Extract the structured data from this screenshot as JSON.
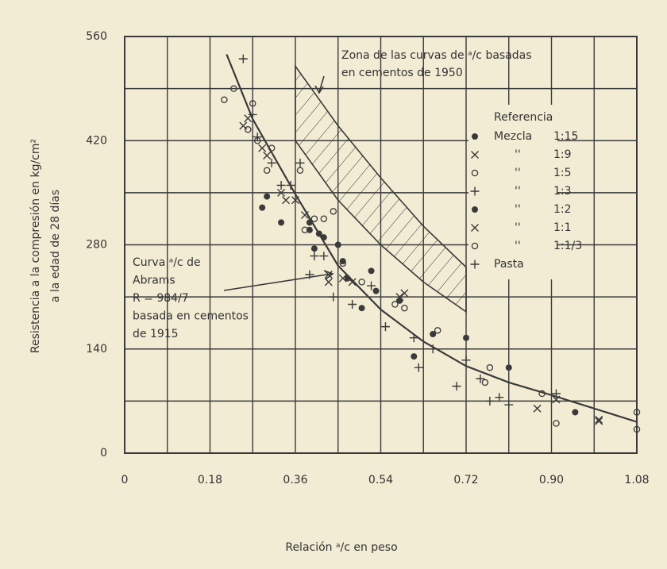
{
  "chart_data": {
    "type": "scatter",
    "xlabel": "Relación ᵃ/c en peso",
    "ylabel": [
      "Resistencia a la compresión en kg/cm²",
      "a la edad de 28 días"
    ],
    "xlim": [
      0,
      1.08
    ],
    "ylim": [
      0,
      560
    ],
    "xticks": [
      0,
      0.18,
      0.36,
      0.54,
      0.72,
      {
        "value": 0.9,
        "label": "0.90"
      },
      1.08
    ],
    "yticks": [
      0,
      140,
      280,
      420,
      560
    ],
    "xgrid": [
      0.09,
      0.27,
      0.45,
      0.63,
      0.81,
      0.99
    ],
    "ygrid": [
      70,
      210,
      350,
      490
    ],
    "grid": true,
    "ink": "#3a3a3a",
    "legend": {
      "title": "Referencia",
      "position": "right"
    },
    "series": [
      {
        "name": "Mezcla",
        "ratio": "1:15",
        "marker": "dot",
        "x": [
          0.29,
          0.33,
          0.39,
          0.4,
          0.42,
          0.46,
          0.5,
          0.53,
          0.61,
          0.65
        ],
        "y": [
          330,
          310,
          300,
          275,
          290,
          258,
          195,
          218,
          130,
          160
        ]
      },
      {
        "name": "''",
        "ratio": "1:9",
        "marker": "x",
        "x": [
          0.25,
          0.3,
          0.34,
          0.38,
          0.43,
          0.46,
          0.59,
          0.87,
          0.91,
          1.0
        ],
        "y": [
          440,
          400,
          340,
          320,
          230,
          235,
          215,
          60,
          72,
          43
        ]
      },
      {
        "name": "''",
        "ratio": "1:5",
        "marker": "o",
        "x": [
          0.21,
          0.23,
          0.27,
          0.31,
          0.37,
          0.4,
          0.44,
          0.57,
          0.77,
          0.91,
          1.08,
          1.08
        ],
        "y": [
          475,
          490,
          470,
          410,
          380,
          315,
          325,
          200,
          115,
          40,
          55,
          32
        ]
      },
      {
        "name": "''",
        "ratio": "1:3",
        "marker": "+",
        "x": [
          0.25,
          0.27,
          0.33,
          0.37,
          0.4,
          0.44,
          0.48,
          0.55,
          0.62,
          0.65,
          0.7,
          0.75,
          0.77,
          0.81
        ],
        "y": [
          530,
          455,
          360,
          390,
          265,
          210,
          200,
          170,
          115,
          140,
          90,
          100,
          70,
          65
        ]
      },
      {
        "name": "''",
        "ratio": "1:2",
        "marker": "dot",
        "x": [
          0.3,
          0.39,
          0.41,
          0.45,
          0.47,
          0.52,
          0.58,
          0.72,
          0.81,
          0.95
        ],
        "y": [
          345,
          310,
          295,
          280,
          235,
          245,
          205,
          155,
          115,
          55
        ]
      },
      {
        "name": "''",
        "ratio": "1:1",
        "marker": "x",
        "x": [
          0.26,
          0.29,
          0.33,
          0.36,
          0.43,
          0.48,
          0.58,
          1.0
        ],
        "y": [
          450,
          410,
          350,
          340,
          240,
          230,
          210,
          45
        ]
      },
      {
        "name": "''",
        "ratio": "1:1/3",
        "marker": "o",
        "x": [
          0.26,
          0.28,
          0.3,
          0.38,
          0.42,
          0.46,
          0.5,
          0.59,
          0.66,
          0.76,
          0.88
        ],
        "y": [
          435,
          420,
          380,
          300,
          315,
          255,
          230,
          195,
          165,
          95,
          80
        ]
      },
      {
        "name": "Pasta",
        "marker": "+",
        "x": [
          0.28,
          0.31,
          0.35,
          0.39,
          0.42,
          0.52,
          0.61,
          0.72,
          0.79,
          0.91
        ],
        "y": [
          425,
          390,
          360,
          240,
          265,
          225,
          155,
          125,
          75,
          80
        ]
      }
    ],
    "curve": {
      "x": [
        0.215,
        0.27,
        0.36,
        0.45,
        0.54,
        0.63,
        0.72,
        0.81,
        0.9,
        1.0,
        1.08
      ],
      "y": [
        536,
        449,
        348,
        252,
        193,
        150,
        117,
        95,
        78,
        58,
        42
      ]
    },
    "zone": {
      "x": [
        0.36,
        0.45,
        0.54,
        0.63,
        0.72
      ],
      "upper": [
        520,
        440,
        370,
        305,
        250
      ],
      "lower": [
        420,
        340,
        280,
        230,
        190
      ]
    },
    "annotations": {
      "zone": [
        "Zona de las curvas de ᵃ/c basadas",
        "en cementos de 1950"
      ],
      "curve": [
        "Curva ᵃ/c de",
        "Abrams",
        "R = 984/7",
        "basada en cementos",
        "de 1915"
      ]
    }
  }
}
